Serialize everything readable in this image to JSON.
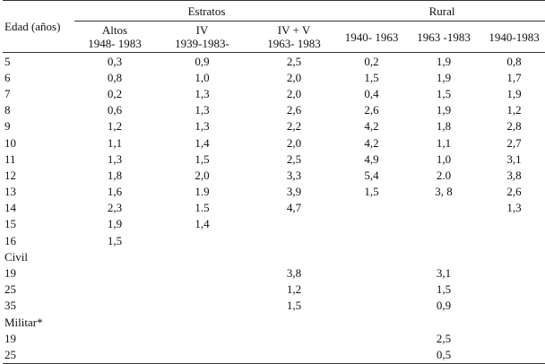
{
  "header": {
    "row_label": "Edad (años)",
    "groups": [
      {
        "label": "Estratos"
      },
      {
        "label": "Rural"
      }
    ],
    "columns": [
      {
        "line1": "Altos",
        "line2": "1948- 1983"
      },
      {
        "line1": "IV",
        "line2": "1939-1983-"
      },
      {
        "line1": "IV + V",
        "line2": "1963- 1983"
      },
      {
        "line1": "",
        "line2": "1940- 1963"
      },
      {
        "line1": "",
        "line2": "1963 -1983"
      },
      {
        "line1": "",
        "line2": "1940-1983"
      }
    ]
  },
  "rows": [
    {
      "label": "5",
      "cells": [
        "0,3",
        "0,9",
        "2,5",
        "0,2",
        "1,9",
        "0,8"
      ]
    },
    {
      "label": "6",
      "cells": [
        "0,8",
        "1,0",
        "2,0",
        "1,5",
        "1,9",
        "1,7"
      ]
    },
    {
      "label": "7",
      "cells": [
        "0,2",
        "1,3",
        "2,0",
        "0,4",
        "1,5",
        "1,9"
      ]
    },
    {
      "label": "8",
      "cells": [
        "0,6",
        "1,3",
        "2,6",
        "2,6",
        "1,9",
        "1,2"
      ]
    },
    {
      "label": "9",
      "cells": [
        "1,2",
        "1,3",
        "2,2",
        "4,2",
        "1,8",
        "2,8"
      ]
    },
    {
      "label": "10",
      "cells": [
        "1,1",
        "1,4",
        "2,0",
        "4,2",
        "1,1",
        "2,7"
      ]
    },
    {
      "label": "11",
      "cells": [
        "1,3",
        "1,5",
        "2,5",
        "4,9",
        "1,0",
        "3,1"
      ]
    },
    {
      "label": "12",
      "cells": [
        "1,8",
        "2,0",
        "3,3",
        "5,4",
        "2.0",
        "3,8"
      ]
    },
    {
      "label": "13",
      "cells": [
        "1,6",
        "1.9",
        "3,9",
        "1,5",
        "3, 8",
        "2,6"
      ]
    },
    {
      "label": "14",
      "cells": [
        "2,3",
        "1.5",
        "4,7",
        "",
        "",
        "1,3"
      ]
    },
    {
      "label": "15",
      "cells": [
        "1,9",
        "1,4",
        "",
        "",
        "",
        ""
      ]
    },
    {
      "label": "16",
      "cells": [
        "1,5",
        "",
        "",
        "",
        "",
        ""
      ]
    },
    {
      "section": "Civil"
    },
    {
      "label": "19",
      "cells": [
        "",
        "",
        "3,8",
        "",
        "3,1",
        ""
      ]
    },
    {
      "label": "25",
      "cells": [
        "",
        "",
        "1,2",
        "",
        "1,5",
        ""
      ]
    },
    {
      "label": "35",
      "cells": [
        "",
        "",
        "1,5",
        "",
        "0,9",
        ""
      ]
    },
    {
      "section": "Militar*"
    },
    {
      "label": "19",
      "cells": [
        "",
        "",
        "",
        "",
        "2,5",
        ""
      ]
    },
    {
      "label": "25",
      "cells": [
        "",
        "",
        "",
        "",
        "0,5",
        ""
      ]
    }
  ]
}
